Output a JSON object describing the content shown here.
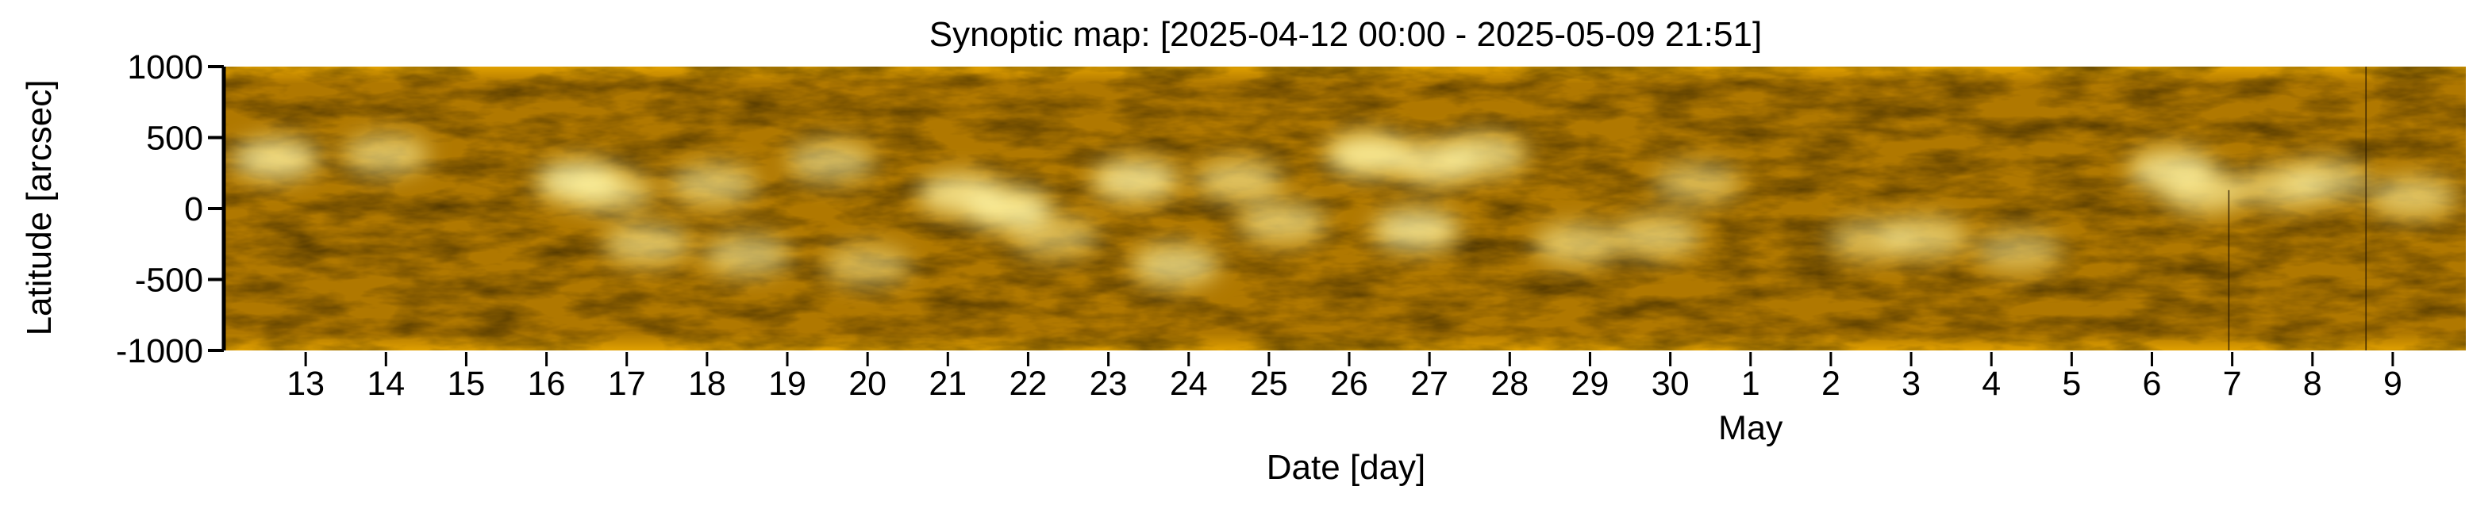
{
  "chart_data": {
    "type": "heatmap",
    "title": "Synoptic map: [2025-04-12 00:00 - 2025-05-09 21:51]",
    "xlabel": "Date [day]",
    "ylabel": "Latitude [arcsec]",
    "x_start": "2025-04-12 00:00",
    "x_end": "2025-05-09 21:51",
    "ylim": [
      -1000,
      1000
    ],
    "y_ticks": [
      1000,
      500,
      0,
      -500,
      -1000
    ],
    "y_tick_labels": [
      "1000",
      "500",
      "0",
      "-500",
      "-1000"
    ],
    "x_ticks": [
      "2025-04-13",
      "2025-04-14",
      "2025-04-15",
      "2025-04-16",
      "2025-04-17",
      "2025-04-18",
      "2025-04-19",
      "2025-04-20",
      "2025-04-21",
      "2025-04-22",
      "2025-04-23",
      "2025-04-24",
      "2025-04-25",
      "2025-04-26",
      "2025-04-27",
      "2025-04-28",
      "2025-04-29",
      "2025-04-30",
      "2025-05-01",
      "2025-05-02",
      "2025-05-03",
      "2025-05-04",
      "2025-05-05",
      "2025-05-06",
      "2025-05-07",
      "2025-05-08",
      "2025-05-09"
    ],
    "x_tick_labels": [
      "13",
      "14",
      "15",
      "16",
      "17",
      "18",
      "19",
      "20",
      "21",
      "22",
      "23",
      "24",
      "25",
      "26",
      "27",
      "28",
      "29",
      "30",
      "1",
      "2",
      "3",
      "4",
      "5",
      "6",
      "7",
      "8",
      "9"
    ],
    "month_label": "May",
    "month_label_date": "2025-05-01",
    "grid": false,
    "colormap": {
      "low": "#3a2600",
      "mid": "#b07800",
      "high": "#fff3a0",
      "edge": "#e0a000"
    },
    "bright_regions": [
      {
        "date": "2025-04-12 15:00",
        "lat": 350,
        "intensity": 0.8
      },
      {
        "date": "2025-04-14 00:00",
        "lat": 380,
        "intensity": 0.6
      },
      {
        "date": "2025-04-16 10:00",
        "lat": 190,
        "intensity": 0.9
      },
      {
        "date": "2025-04-16 19:00",
        "lat": 120,
        "intensity": 0.6
      },
      {
        "date": "2025-04-17 06:00",
        "lat": -250,
        "intensity": 0.6
      },
      {
        "date": "2025-04-18 02:00",
        "lat": 170,
        "intensity": 0.6
      },
      {
        "date": "2025-04-18 12:00",
        "lat": -330,
        "intensity": 0.6
      },
      {
        "date": "2025-04-19 13:00",
        "lat": 330,
        "intensity": 0.6
      },
      {
        "date": "2025-04-20 00:00",
        "lat": -400,
        "intensity": 0.5
      },
      {
        "date": "2025-04-21 04:00",
        "lat": 100,
        "intensity": 0.8
      },
      {
        "date": "2025-04-21 18:00",
        "lat": 0,
        "intensity": 0.9
      },
      {
        "date": "2025-04-22 08:00",
        "lat": -200,
        "intensity": 0.5
      },
      {
        "date": "2025-04-23 08:00",
        "lat": 200,
        "intensity": 0.8
      },
      {
        "date": "2025-04-23 20:00",
        "lat": -400,
        "intensity": 0.7
      },
      {
        "date": "2025-04-24 15:00",
        "lat": 200,
        "intensity": 0.6
      },
      {
        "date": "2025-04-25 04:00",
        "lat": -100,
        "intensity": 0.6
      },
      {
        "date": "2025-04-26 06:00",
        "lat": 380,
        "intensity": 0.9
      },
      {
        "date": "2025-04-26 20:00",
        "lat": -150,
        "intensity": 0.8
      },
      {
        "date": "2025-04-27 02:00",
        "lat": 320,
        "intensity": 0.8
      },
      {
        "date": "2025-04-27 16:00",
        "lat": 380,
        "intensity": 0.7
      },
      {
        "date": "2025-04-28 20:00",
        "lat": -250,
        "intensity": 0.6
      },
      {
        "date": "2025-04-29 20:00",
        "lat": -200,
        "intensity": 0.6
      },
      {
        "date": "2025-04-30 08:00",
        "lat": 180,
        "intensity": 0.5
      },
      {
        "date": "2025-05-02 12:00",
        "lat": -220,
        "intensity": 0.5
      },
      {
        "date": "2025-05-03 04:00",
        "lat": -200,
        "intensity": 0.6
      },
      {
        "date": "2025-05-04 08:00",
        "lat": -300,
        "intensity": 0.5
      },
      {
        "date": "2025-05-06 06:00",
        "lat": 270,
        "intensity": 0.8
      },
      {
        "date": "2025-05-06 16:00",
        "lat": 120,
        "intensity": 0.7
      },
      {
        "date": "2025-05-07 16:00",
        "lat": 150,
        "intensity": 0.6
      },
      {
        "date": "2025-05-08 04:00",
        "lat": 200,
        "intensity": 0.6
      },
      {
        "date": "2025-05-09 06:00",
        "lat": 80,
        "intensity": 0.6
      }
    ],
    "dark_lines": [
      {
        "date": "2025-05-06 23:00",
        "lat_from": 130,
        "lat_to": -1000
      },
      {
        "date": "2025-05-08 16:00",
        "lat_from": 1000,
        "lat_to": -1000
      }
    ]
  }
}
